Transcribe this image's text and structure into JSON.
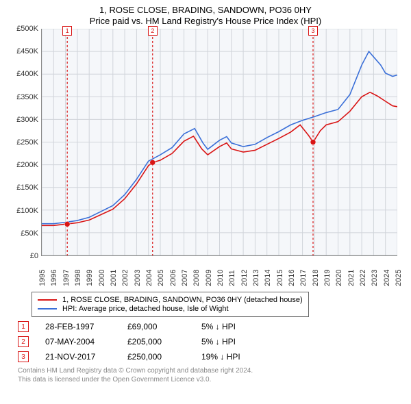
{
  "title_line1": "1, ROSE CLOSE, BRADING, SANDOWN, PO36 0HY",
  "title_line2": "Price paid vs. HM Land Registry's House Price Index (HPI)",
  "chart": {
    "type": "line",
    "background_color": "#f5f7fa",
    "grid_color": "#d0d4da",
    "x_years": [
      1995,
      1996,
      1997,
      1998,
      1999,
      2000,
      2001,
      2002,
      2003,
      2004,
      2005,
      2006,
      2007,
      2008,
      2009,
      2010,
      2011,
      2012,
      2013,
      2014,
      2015,
      2016,
      2017,
      2018,
      2019,
      2020,
      2021,
      2022,
      2023,
      2024,
      2025
    ],
    "x_min": 1995,
    "x_max": 2025,
    "ylim": [
      0,
      500000
    ],
    "ytick_step": 50000,
    "yticks": [
      "£0",
      "£50K",
      "£100K",
      "£150K",
      "£200K",
      "£250K",
      "£300K",
      "£350K",
      "£400K",
      "£450K",
      "£500K"
    ],
    "label_fontsize": 11,
    "series_red": {
      "color": "#d91414",
      "width": 1.6,
      "points": [
        [
          1995,
          66
        ],
        [
          1996,
          66
        ],
        [
          1997,
          69
        ],
        [
          1998,
          72
        ],
        [
          1999,
          78
        ],
        [
          2000,
          90
        ],
        [
          2001,
          102
        ],
        [
          2002,
          125
        ],
        [
          2003,
          158
        ],
        [
          2004,
          198
        ],
        [
          2004.35,
          205
        ],
        [
          2005,
          210
        ],
        [
          2006,
          225
        ],
        [
          2007,
          252
        ],
        [
          2007.8,
          263
        ],
        [
          2008.5,
          235
        ],
        [
          2009,
          222
        ],
        [
          2010,
          240
        ],
        [
          2010.6,
          248
        ],
        [
          2011,
          235
        ],
        [
          2012,
          228
        ],
        [
          2013,
          232
        ],
        [
          2014,
          245
        ],
        [
          2015,
          258
        ],
        [
          2016,
          272
        ],
        [
          2016.8,
          288
        ],
        [
          2017.5,
          265
        ],
        [
          2017.9,
          250
        ],
        [
          2018.5,
          275
        ],
        [
          2019,
          288
        ],
        [
          2020,
          295
        ],
        [
          2021,
          318
        ],
        [
          2022,
          350
        ],
        [
          2022.7,
          360
        ],
        [
          2023.3,
          352
        ],
        [
          2024,
          340
        ],
        [
          2024.6,
          330
        ],
        [
          2025,
          328
        ]
      ]
    },
    "series_blue": {
      "color": "#3a6fd8",
      "width": 1.6,
      "points": [
        [
          1995,
          70
        ],
        [
          1996,
          70
        ],
        [
          1997,
          73
        ],
        [
          1998,
          77
        ],
        [
          1999,
          84
        ],
        [
          2000,
          97
        ],
        [
          2001,
          110
        ],
        [
          2002,
          134
        ],
        [
          2003,
          168
        ],
        [
          2004,
          208
        ],
        [
          2005,
          222
        ],
        [
          2006,
          238
        ],
        [
          2007,
          268
        ],
        [
          2007.9,
          280
        ],
        [
          2008.6,
          248
        ],
        [
          2009,
          234
        ],
        [
          2010,
          254
        ],
        [
          2010.6,
          262
        ],
        [
          2011,
          248
        ],
        [
          2012,
          240
        ],
        [
          2013,
          245
        ],
        [
          2014,
          260
        ],
        [
          2015,
          273
        ],
        [
          2016,
          288
        ],
        [
          2017,
          298
        ],
        [
          2018,
          306
        ],
        [
          2019,
          315
        ],
        [
          2020,
          322
        ],
        [
          2021,
          355
        ],
        [
          2022,
          420
        ],
        [
          2022.6,
          450
        ],
        [
          2023,
          438
        ],
        [
          2023.6,
          420
        ],
        [
          2024,
          402
        ],
        [
          2024.6,
          395
        ],
        [
          2025,
          398
        ]
      ]
    },
    "markers": [
      {
        "n": "1",
        "year": 1997.15,
        "price": 69000,
        "color": "#d91414"
      },
      {
        "n": "2",
        "year": 2004.35,
        "price": 205000,
        "color": "#d91414"
      },
      {
        "n": "3",
        "year": 2017.89,
        "price": 250000,
        "color": "#d91414"
      }
    ],
    "marker_line_color": "#d91414",
    "sale_dot_color": "#d91414",
    "sale_dot_radius": 4
  },
  "legend": {
    "red_label": "1, ROSE CLOSE, BRADING, SANDOWN, PO36 0HY (detached house)",
    "blue_label": "HPI: Average price, detached house, Isle of Wight",
    "red_color": "#d91414",
    "blue_color": "#3a6fd8"
  },
  "sales": [
    {
      "n": "1",
      "date": "28-FEB-1997",
      "price": "£69,000",
      "delta_pct": "5%",
      "delta_dir": "↓",
      "delta_label": "HPI",
      "color": "#d91414"
    },
    {
      "n": "2",
      "date": "07-MAY-2004",
      "price": "£205,000",
      "delta_pct": "5%",
      "delta_dir": "↓",
      "delta_label": "HPI",
      "color": "#d91414"
    },
    {
      "n": "3",
      "date": "21-NOV-2017",
      "price": "£250,000",
      "delta_pct": "19%",
      "delta_dir": "↓",
      "delta_label": "HPI",
      "color": "#d91414"
    }
  ],
  "footer_line1": "Contains HM Land Registry data © Crown copyright and database right 2024.",
  "footer_line2": "This data is licensed under the Open Government Licence v3.0."
}
